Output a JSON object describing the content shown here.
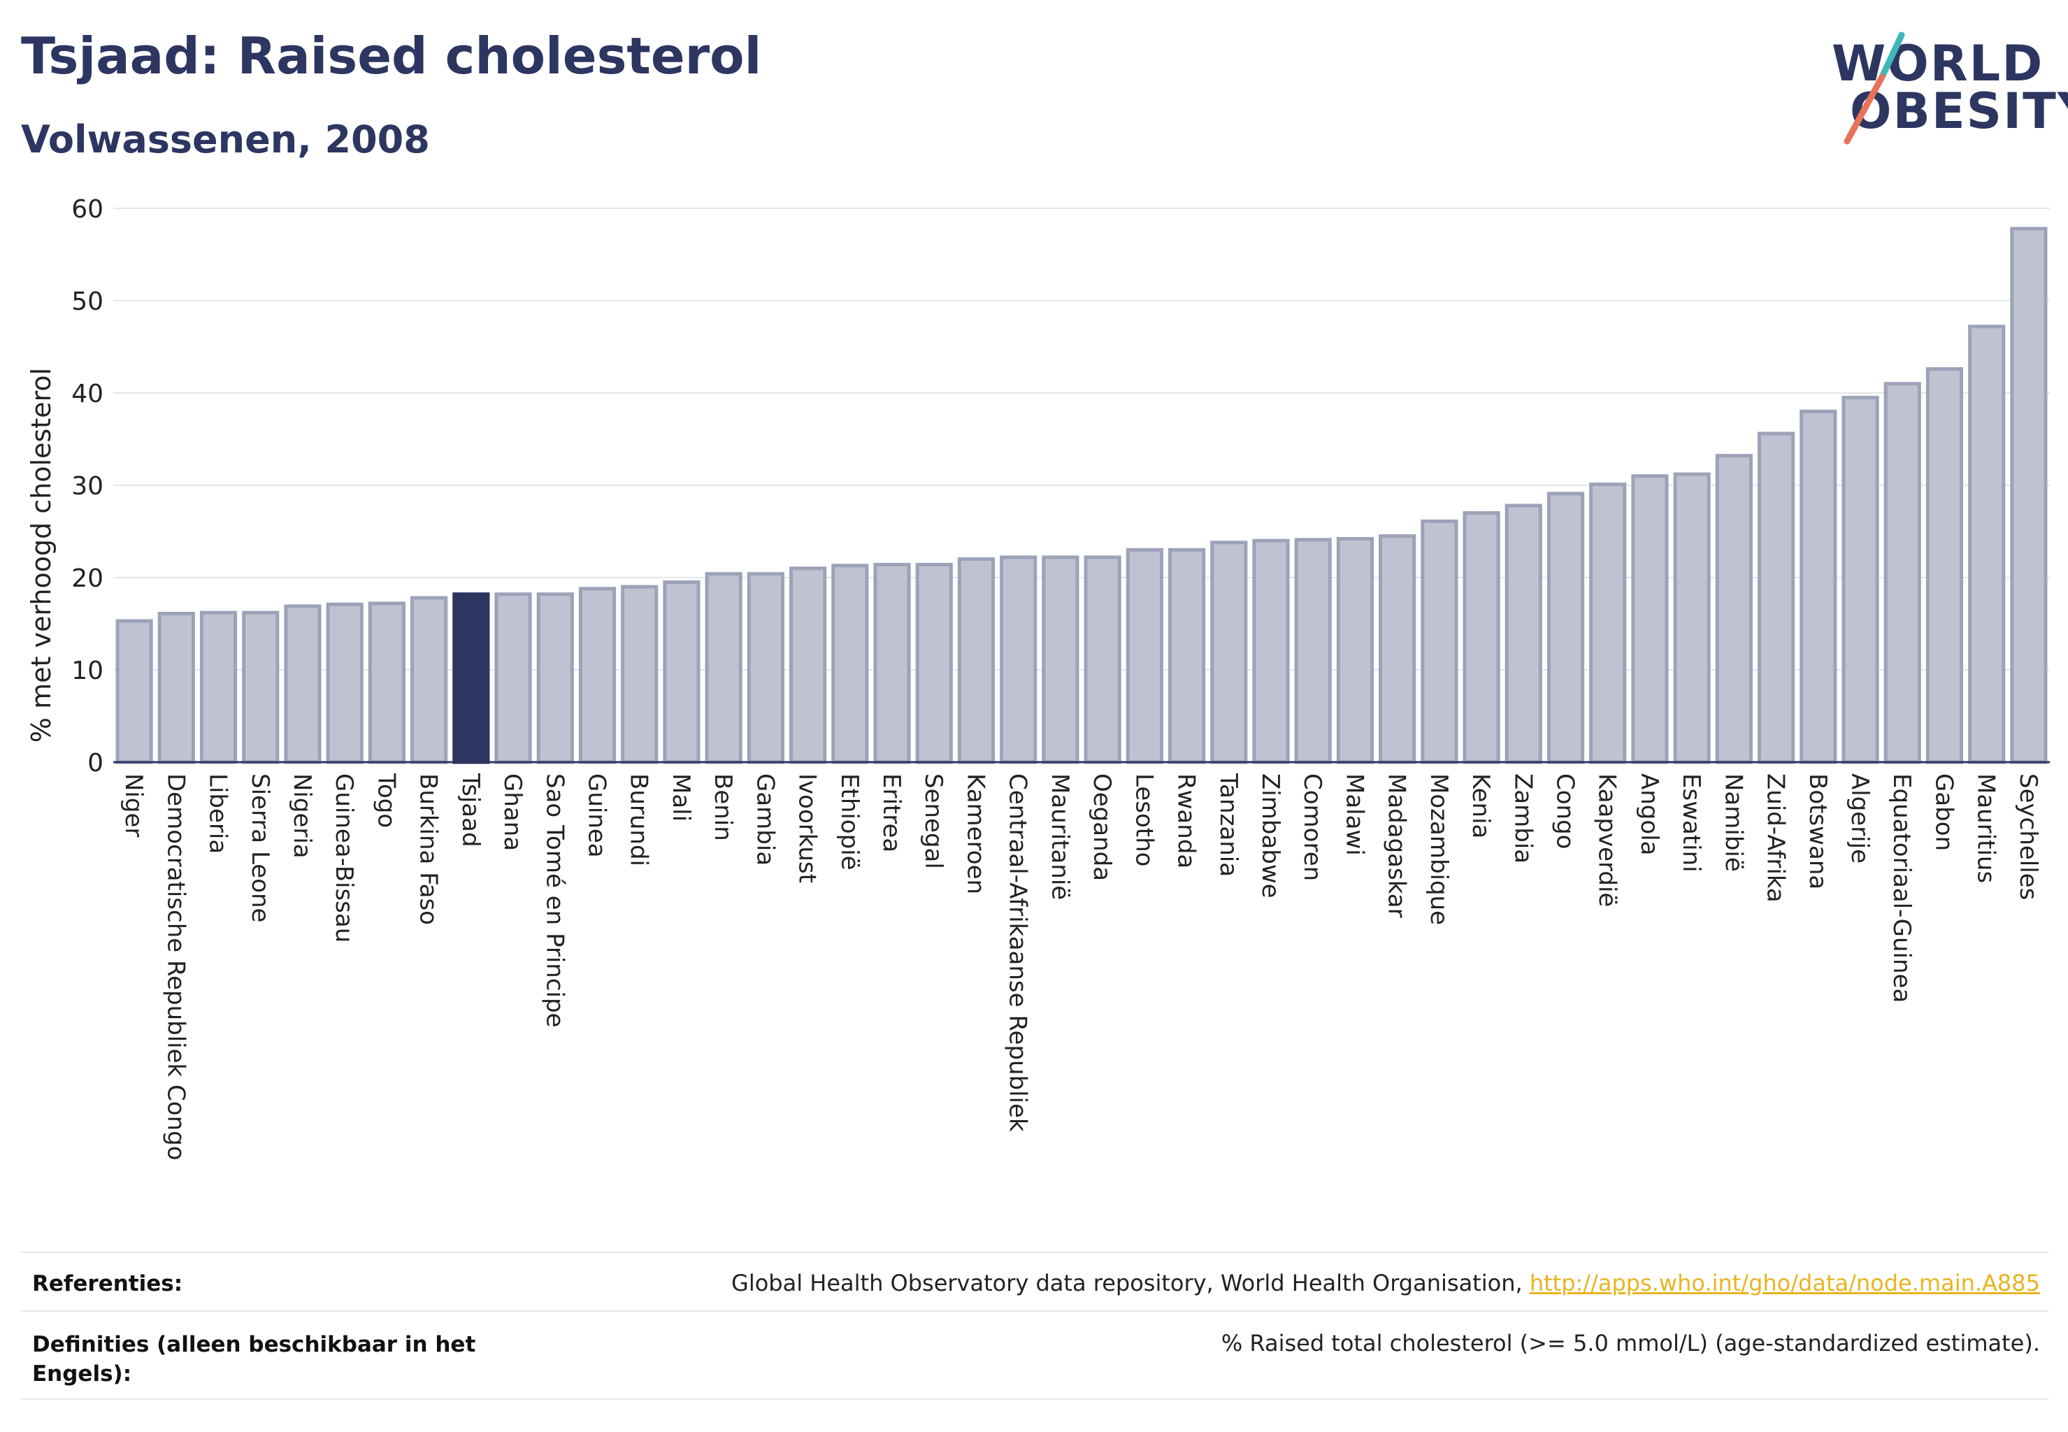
{
  "header": {
    "title": "Tsjaad: Raised cholesterol",
    "subtitle": "Volwassenen, 2008"
  },
  "logo": {
    "line1": "WORLD",
    "line2": "OBESITY",
    "text": "WORLD OBESITY"
  },
  "colors": {
    "highlight": "#2d3561",
    "bar": "#bfc3d1",
    "bar_edge": "#9da2b8",
    "accent_teal": "#3fb7b9",
    "accent_red": "#e8735a",
    "link": "#e8b420"
  },
  "chart_data": {
    "type": "bar",
    "title": "Tsjaad: Raised cholesterol",
    "subtitle": "Volwassenen, 2008",
    "xlabel": "",
    "ylabel": "% met verhoogd cholesterol",
    "ylim": [
      0,
      60
    ],
    "yticks": [
      0,
      10,
      20,
      30,
      40,
      50,
      60
    ],
    "grid": true,
    "highlight": "Tsjaad",
    "categories": [
      "Niger",
      "Democratische Republiek Congo",
      "Liberia",
      "Sierra Leone",
      "Nigeria",
      "Guinea-Bissau",
      "Togo",
      "Burkina Faso",
      "Tsjaad",
      "Ghana",
      "Sao Tomé en Principe",
      "Guinea",
      "Burundi",
      "Mali",
      "Benin",
      "Gambia",
      "Ivoorkust",
      "Ethiopië",
      "Eritrea",
      "Senegal",
      "Kameroen",
      "Centraal-Afrikaanse Republiek",
      "Mauritanië",
      "Oeganda",
      "Lesotho",
      "Rwanda",
      "Tanzania",
      "Zimbabwe",
      "Comoren",
      "Malawi",
      "Madagaskar",
      "Mozambique",
      "Kenia",
      "Zambia",
      "Congo",
      "Kaapverdië",
      "Angola",
      "Eswatini",
      "Namibië",
      "Zuid-Afrika",
      "Botswana",
      "Algerije",
      "Equatoriaal-Guinea",
      "Gabon",
      "Mauritius",
      "Seychelles"
    ],
    "values": [
      15.3,
      16.1,
      16.2,
      16.2,
      16.9,
      17.1,
      17.2,
      17.8,
      18.2,
      18.2,
      18.2,
      18.8,
      19.0,
      19.5,
      20.4,
      20.4,
      21.0,
      21.3,
      21.4,
      21.4,
      22.0,
      22.2,
      22.2,
      22.2,
      23.0,
      23.0,
      23.8,
      24.0,
      24.1,
      24.2,
      24.5,
      26.1,
      27.0,
      27.8,
      29.1,
      30.1,
      31.0,
      31.2,
      33.2,
      35.6,
      38.0,
      39.5,
      41.0,
      42.6,
      47.2,
      57.8
    ]
  },
  "footer": {
    "references_label": "Referenties:",
    "references_text": "Global Health Observatory data repository, World Health Organisation, ",
    "references_link": "http://apps.who.int/gho/data/node.main.A885",
    "definitions_label": "Definities (alleen beschikbaar in het Engels):",
    "definitions_text": "% Raised total cholesterol (>= 5.0 mmol/L) (age-standardized estimate)."
  }
}
